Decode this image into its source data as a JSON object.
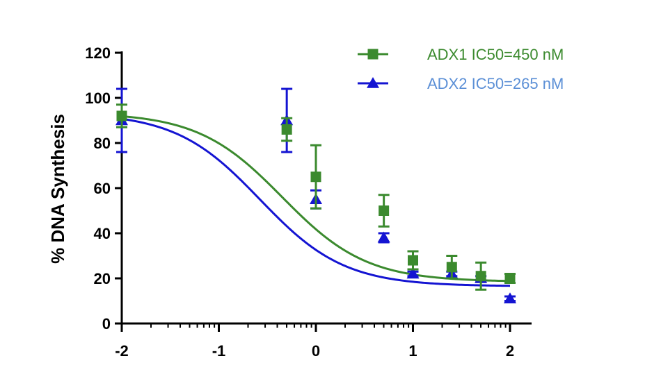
{
  "chart_data": {
    "type": "scatter",
    "title": "",
    "xlabel": "",
    "ylabel": "% DNA Synthesis",
    "xscale": "log10 concentration",
    "xlim": [
      -2,
      2
    ],
    "ylim": [
      0,
      120
    ],
    "x_ticks": [
      "-2",
      "-1",
      "0",
      "1",
      "2"
    ],
    "y_ticks": [
      "0",
      "20",
      "40",
      "60",
      "80",
      "100",
      "120"
    ],
    "grid": false,
    "legend_position": "top-right",
    "series": [
      {
        "name": "ADX1 IC50=450 nM",
        "color": "#3b8a2e",
        "legend_color": "#3b8a2e",
        "marker": "square",
        "fit": {
          "top": 93.5,
          "bottom": 18.5,
          "log_ic50": -0.3468,
          "hill": -1.0
        },
        "points": [
          {
            "x": -2.0,
            "y": 92,
            "err": 5
          },
          {
            "x": -0.3,
            "y": 86,
            "err": 5
          },
          {
            "x": 0.0,
            "y": 65,
            "err": 14
          },
          {
            "x": 0.7,
            "y": 50,
            "err": 7
          },
          {
            "x": 1.0,
            "y": 28,
            "err": 4
          },
          {
            "x": 1.4,
            "y": 25,
            "err": 5
          },
          {
            "x": 1.7,
            "y": 21,
            "err": 6
          },
          {
            "x": 2.0,
            "y": 20,
            "err": 2
          }
        ]
      },
      {
        "name": "ADX2 IC50=265 nM",
        "color": "#1414d2",
        "legend_color": "#5b8fd6",
        "marker": "triangle",
        "fit": {
          "top": 93.5,
          "bottom": 16.5,
          "log_ic50": -0.5768,
          "hill": -1.0
        },
        "points": [
          {
            "x": -2.0,
            "y": 90,
            "err": 14
          },
          {
            "x": -0.3,
            "y": 90,
            "err": 14
          },
          {
            "x": 0.0,
            "y": 55,
            "err": 4
          },
          {
            "x": 0.7,
            "y": 38,
            "err": 2
          },
          {
            "x": 1.0,
            "y": 22,
            "err": 1
          },
          {
            "x": 1.4,
            "y": 22,
            "err": 1
          },
          {
            "x": 1.7,
            "y": 20,
            "err": 1
          },
          {
            "x": 2.0,
            "y": 11,
            "err": 1
          }
        ]
      }
    ]
  }
}
